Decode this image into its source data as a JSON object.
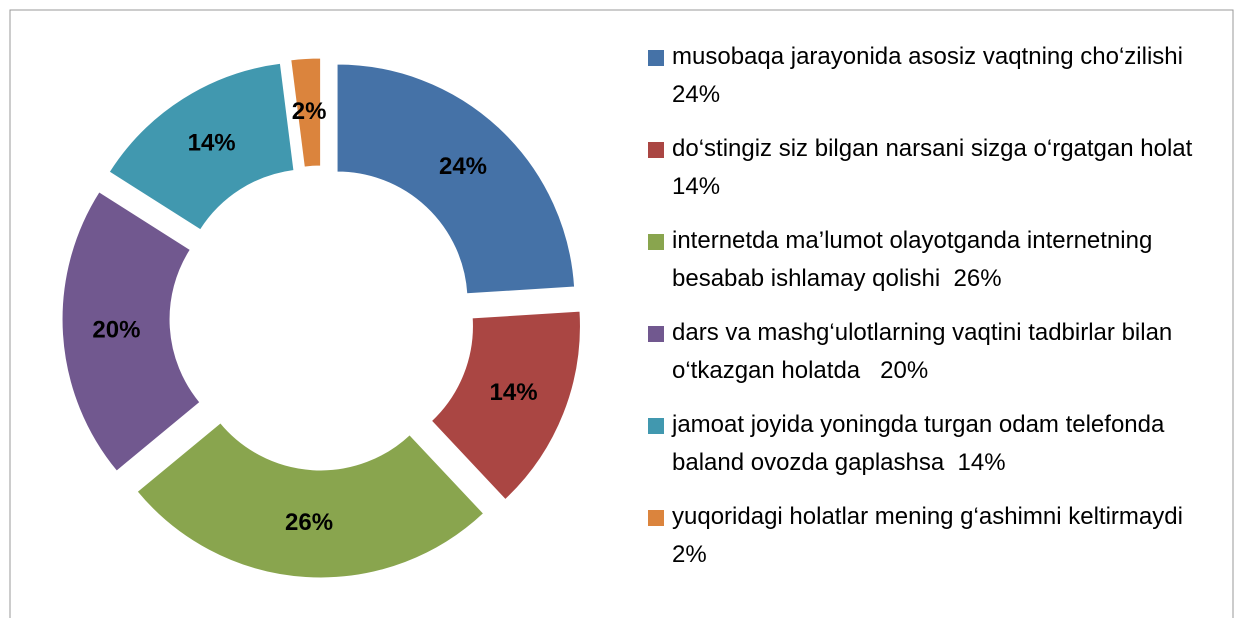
{
  "chart_data": {
    "type": "pie",
    "donut": true,
    "categories": [
      "musobaqa jarayonida asosiz vaqtning cho‘zilishi  24%",
      "do‘stingiz siz bilgan narsani sizga o‘rgatgan holat  14%",
      "internetda ma’lumot olayotganda internetning besabab ishlamay qolishi  26%",
      "dars va mashg‘ulotlarning vaqtini tadbirlar bilan o‘tkazgan holatda   20%",
      "jamoat joyida yoningda turgan odam telefonda baland ovozda gaplashsa  14%",
      "yuqoridagi holatlar mening g‘ashimni keltirmaydi   2%"
    ],
    "values": [
      24,
      14,
      26,
      20,
      14,
      2
    ],
    "value_labels": [
      "24%",
      "14%",
      "26%",
      "20%",
      "14%",
      "2%"
    ],
    "colors": [
      "#4572a7",
      "#aa4643",
      "#89a54e",
      "#71588f",
      "#4198af",
      "#db843d"
    ],
    "legend": "right"
  }
}
